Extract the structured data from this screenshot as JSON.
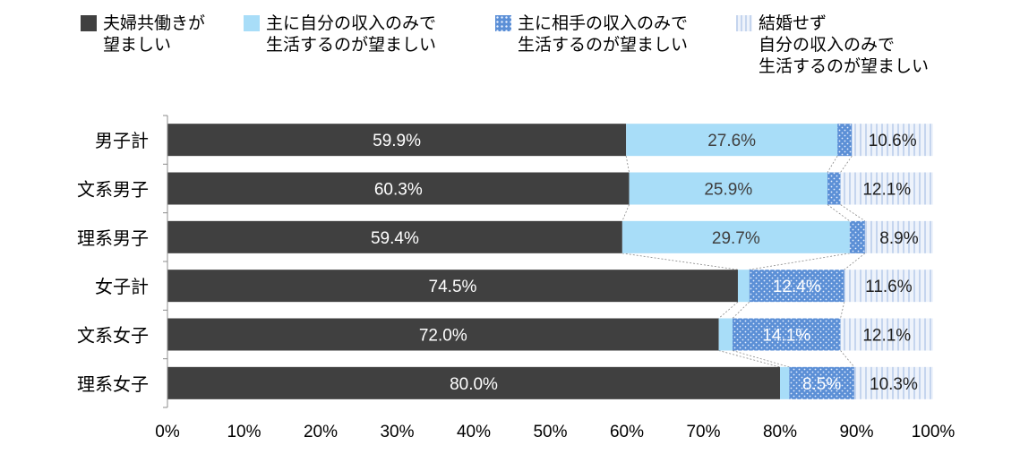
{
  "chart_data": {
    "type": "bar",
    "orientation": "horizontal",
    "stacked": "100%",
    "categories": [
      "男子計",
      "文系男子",
      "理系男子",
      "女子計",
      "文系女子",
      "理系女子"
    ],
    "series": [
      {
        "name": "夫婦共働きが\n望ましい",
        "color": "#404040",
        "label_color": "#ffffff",
        "pattern": "solid",
        "values": [
          59.9,
          60.3,
          59.4,
          74.5,
          72.0,
          80.0
        ],
        "labels": [
          "59.9%",
          "60.3%",
          "59.4%",
          "74.5%",
          "72.0%",
          "80.0%"
        ]
      },
      {
        "name": "主に自分の収入のみで\n生活するのが望ましい",
        "color": "#a8ddf8",
        "label_color": "#404040",
        "pattern": "solid",
        "values": [
          27.6,
          25.9,
          29.7,
          1.5,
          1.8,
          1.2
        ],
        "labels": [
          "27.6%",
          "25.9%",
          "29.7%",
          "",
          "",
          ""
        ]
      },
      {
        "name": "主に相手の収入のみで\n生活するのが望ましい",
        "color": "#5b8fd6",
        "label_color": "#ffffff",
        "pattern": "dots",
        "values": [
          1.9,
          1.7,
          2.0,
          12.4,
          14.1,
          8.5
        ],
        "labels": [
          "",
          "",
          "",
          "12.4%",
          "14.1%",
          "8.5%"
        ]
      },
      {
        "name": "結婚せず\n自分の収入のみで\n生活するのが望ましい",
        "color": "#dbe5f4",
        "label_color": "#202020",
        "pattern": "stripes",
        "values": [
          10.6,
          12.1,
          8.9,
          11.6,
          12.1,
          10.3
        ],
        "labels": [
          "10.6%",
          "12.1%",
          "8.9%",
          "11.6%",
          "12.1%",
          "10.3%"
        ]
      }
    ],
    "xlim": [
      0,
      100
    ],
    "xticks": [
      "0%",
      "10%",
      "20%",
      "30%",
      "40%",
      "50%",
      "60%",
      "70%",
      "80%",
      "90%",
      "100%"
    ],
    "legend_position": "top",
    "series_lines": true,
    "grid": false
  }
}
